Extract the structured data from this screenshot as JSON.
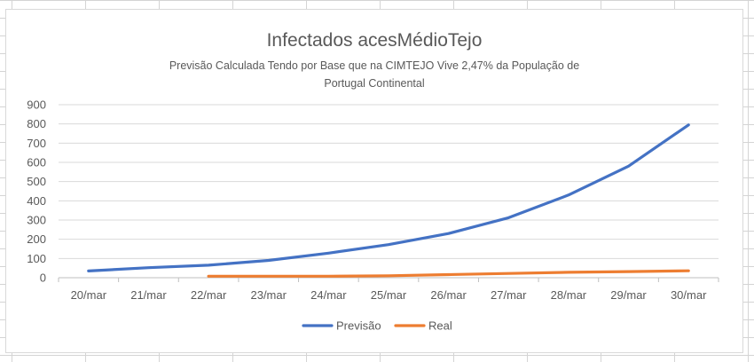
{
  "chart_data": {
    "type": "line",
    "title": "Infectados acesMédioTejo",
    "subtitle": "Previsão Calculada Tendo por Base que na CIMTEJO Vive 2,47% da População de Portugal Continental",
    "categories": [
      "20/mar",
      "21/mar",
      "22/mar",
      "23/mar",
      "24/mar",
      "25/mar",
      "26/mar",
      "27/mar",
      "28/mar",
      "29/mar",
      "30/mar"
    ],
    "ylim": [
      0,
      900
    ],
    "yticks": [
      0,
      100,
      200,
      300,
      400,
      500,
      600,
      700,
      800,
      900
    ],
    "grid": true,
    "legend_position": "bottom",
    "series": [
      {
        "name": "Previsão",
        "color": "#4472c4",
        "values": [
          35,
          52,
          65,
          90,
          128,
          172,
          230,
          312,
          430,
          580,
          795
        ]
      },
      {
        "name": "Real",
        "color": "#ed7d31",
        "values": [
          null,
          null,
          8,
          8,
          8,
          10,
          16,
          22,
          28,
          32,
          36
        ]
      }
    ]
  }
}
